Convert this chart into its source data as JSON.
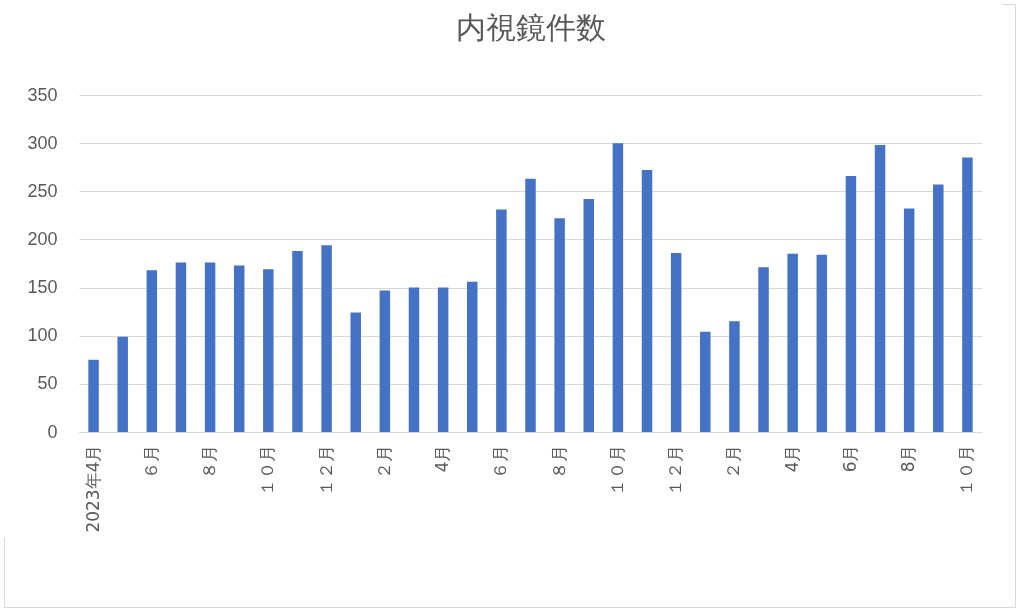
{
  "chart_data": {
    "type": "bar",
    "title": "内視鏡件数",
    "categories": [
      "2023年4月",
      null,
      "６月",
      null,
      "８月",
      null,
      "１０月",
      null,
      "１２月",
      null,
      "２月",
      null,
      "4月",
      null,
      "６月",
      null,
      "８月",
      null,
      "１０月",
      null,
      "１２月",
      null,
      "２月",
      null,
      "4月",
      null,
      "6月",
      null,
      "8月",
      null,
      "１０月"
    ],
    "values": [
      75,
      99,
      168,
      176,
      176,
      173,
      169,
      188,
      194,
      124,
      147,
      150,
      150,
      156,
      231,
      263,
      222,
      242,
      300,
      272,
      186,
      104,
      115,
      171,
      185,
      184,
      266,
      298,
      232,
      257,
      285
    ],
    "color": "#4472c4",
    "ylim": [
      0,
      350
    ],
    "yticks": [
      0,
      50,
      100,
      150,
      200,
      250,
      300,
      350
    ],
    "grid": "y"
  }
}
